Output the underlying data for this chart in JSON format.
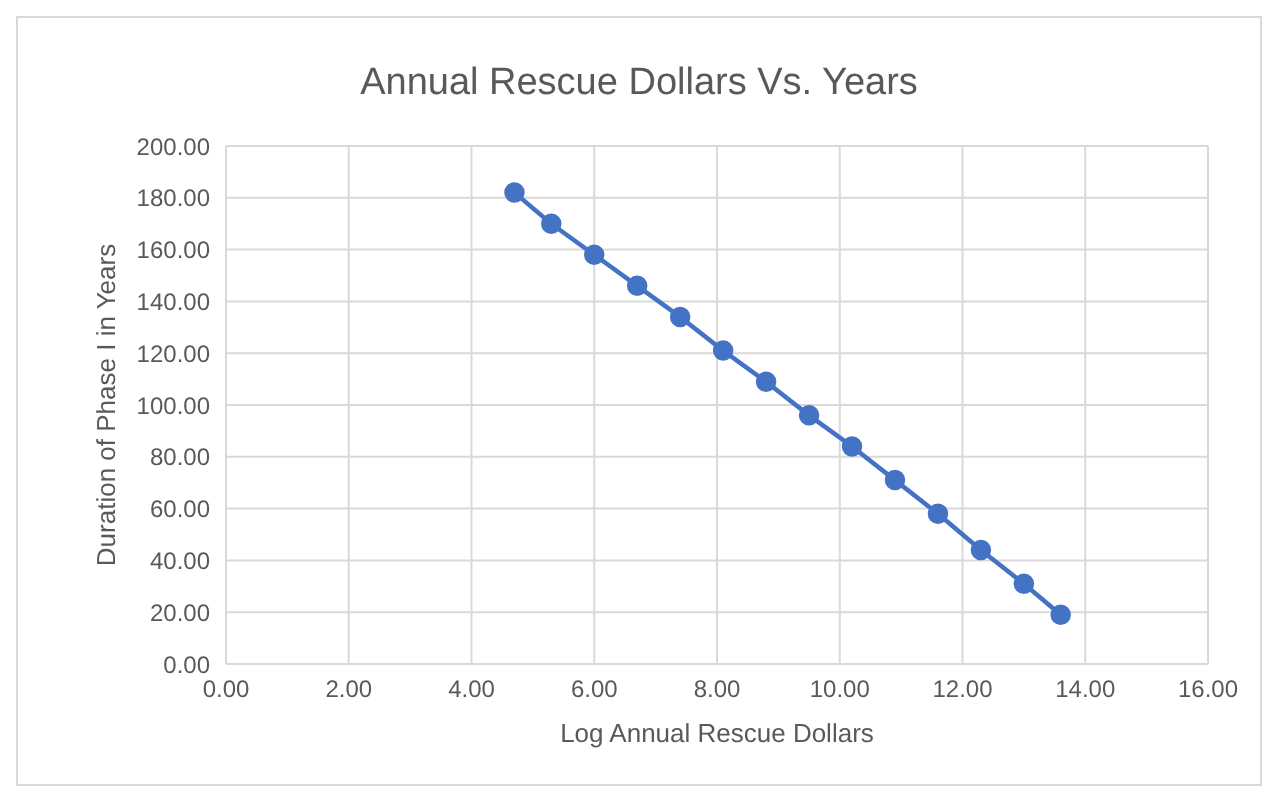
{
  "chart_data": {
    "type": "line",
    "title": "Annual Rescue Dollars Vs. Years",
    "xlabel": "Log Annual Rescue Dollars",
    "ylabel": "Duration of Phase I in Years",
    "x": [
      4.7,
      5.3,
      6.0,
      6.7,
      7.4,
      8.1,
      8.8,
      9.5,
      10.2,
      10.9,
      11.6,
      12.3,
      13.0,
      13.6
    ],
    "series": [
      {
        "color": "#4472c4",
        "values": [
          182,
          170,
          158,
          146,
          134,
          121,
          109,
          96,
          84,
          71,
          58,
          44,
          31,
          19
        ]
      }
    ],
    "xlim": [
      0,
      16
    ],
    "xticks": [
      {
        "value": 0,
        "label": "0.00"
      },
      {
        "value": 2,
        "label": "2.00"
      },
      {
        "value": 4,
        "label": "4.00"
      },
      {
        "value": 6,
        "label": "6.00"
      },
      {
        "value": 8,
        "label": "8.00"
      },
      {
        "value": 10,
        "label": "10.00"
      },
      {
        "value": 12,
        "label": "12.00"
      },
      {
        "value": 14,
        "label": "14.00"
      },
      {
        "value": 16,
        "label": "16.00"
      }
    ],
    "ylim": [
      0,
      200
    ],
    "yticks": [
      {
        "value": 0,
        "label": "0.00"
      },
      {
        "value": 20,
        "label": "20.00"
      },
      {
        "value": 40,
        "label": "40.00"
      },
      {
        "value": 60,
        "label": "60.00"
      },
      {
        "value": 80,
        "label": "80.00"
      },
      {
        "value": 100,
        "label": "100.00"
      },
      {
        "value": 120,
        "label": "120.00"
      },
      {
        "value": 140,
        "label": "140.00"
      },
      {
        "value": 160,
        "label": "160.00"
      },
      {
        "value": 180,
        "label": "180.00"
      },
      {
        "value": 200,
        "label": "200.00"
      }
    ],
    "grid": true,
    "marker": "circle",
    "line_style": "solid",
    "legend": false
  }
}
